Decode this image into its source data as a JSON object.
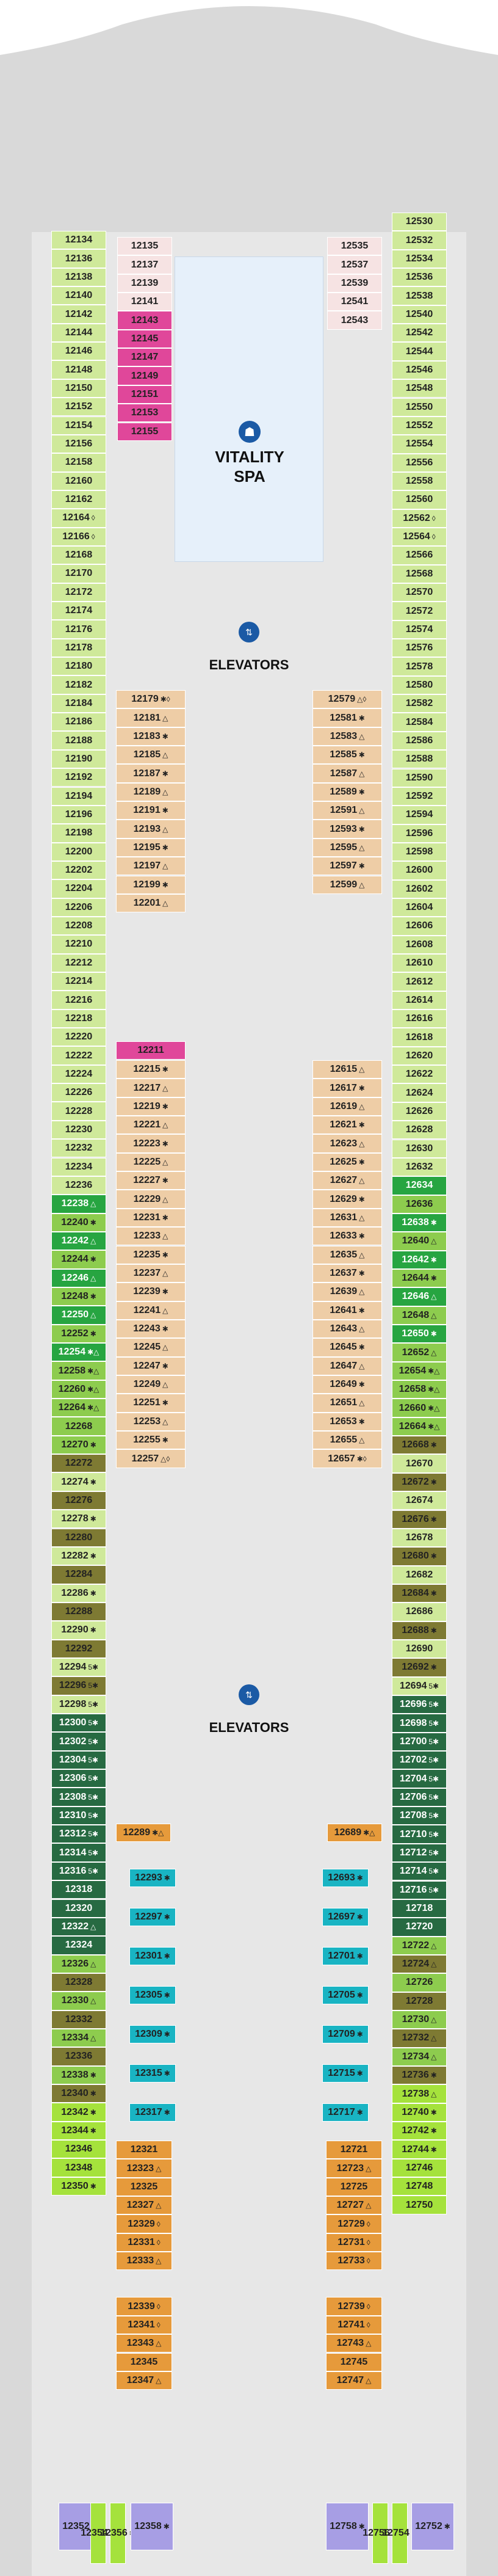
{
  "venues": {
    "spa": {
      "line1": "VITALITY",
      "line2": "SPA",
      "icon": "spa-person-icon"
    },
    "elevators_fwd": {
      "label": "ELEVATORS",
      "icon": "elevator-icon"
    },
    "elevators_aft": {
      "label": "ELEVATORS",
      "icon": "elevator-icon"
    },
    "elevator_door_letter": "E"
  },
  "colors": {
    "interior": "#eecda6",
    "balcony_light": "#cfe99a",
    "balcony_green": "#a4d86e",
    "spa_pink": "#e0479a",
    "outside_view": "#8dcc4e",
    "panoramic": "#27a541",
    "suite_dark": "#276a42",
    "family_olive": "#7e7a33",
    "teal_virtual": "#19b4c3",
    "orange_cabin": "#e69a3b",
    "lime": "#a5e23c",
    "lavender": "#a79ee4",
    "light_pink": "#f6e3e3",
    "gray_hull": "#d9d9d9",
    "corridor": "#e7e7e7",
    "spa_blue": "#e6f0fa"
  },
  "legend_symbols": {
    "accessible": "♿",
    "connecting": "◊",
    "sofa_bed": "✱",
    "two_pull": "△"
  },
  "cabins": {
    "left_outer": [
      {
        "n": "12134",
        "s": ""
      },
      {
        "n": "12136",
        "s": ""
      },
      {
        "n": "12138",
        "s": ""
      },
      {
        "n": "12140",
        "s": ""
      },
      {
        "n": "12142",
        "s": ""
      },
      {
        "n": "12144",
        "s": ""
      },
      {
        "n": "12146",
        "s": ""
      },
      {
        "n": "12148",
        "s": ""
      },
      {
        "n": "12150",
        "s": ""
      },
      {
        "n": "12152",
        "s": ""
      },
      {
        "n": "12154",
        "s": ""
      },
      {
        "n": "12156",
        "s": ""
      },
      {
        "n": "12158",
        "s": ""
      },
      {
        "n": "12160",
        "s": ""
      },
      {
        "n": "12162",
        "s": ""
      },
      {
        "n": "12164",
        "s": "◊"
      },
      {
        "n": "12166",
        "s": "◊"
      },
      {
        "n": "12168",
        "s": ""
      },
      {
        "n": "12170",
        "s": ""
      },
      {
        "n": "12172",
        "s": ""
      },
      {
        "n": "12174",
        "s": ""
      },
      {
        "n": "12176",
        "s": ""
      },
      {
        "n": "12178",
        "s": ""
      },
      {
        "n": "12180",
        "s": ""
      },
      {
        "n": "12182",
        "s": ""
      },
      {
        "n": "12184",
        "s": ""
      },
      {
        "n": "12186",
        "s": ""
      },
      {
        "n": "12188",
        "s": ""
      },
      {
        "n": "12190",
        "s": ""
      },
      {
        "n": "12192",
        "s": ""
      },
      {
        "n": "12194",
        "s": ""
      },
      {
        "n": "12196",
        "s": ""
      },
      {
        "n": "12198",
        "s": ""
      },
      {
        "n": "12200",
        "s": ""
      },
      {
        "n": "12202",
        "s": ""
      },
      {
        "n": "12204",
        "s": ""
      },
      {
        "n": "12206",
        "s": ""
      },
      {
        "n": "12208",
        "s": ""
      },
      {
        "n": "12210",
        "s": ""
      },
      {
        "n": "12212",
        "s": ""
      },
      {
        "n": "12214",
        "s": ""
      },
      {
        "n": "12216",
        "s": ""
      },
      {
        "n": "12218",
        "s": ""
      },
      {
        "n": "12220",
        "s": ""
      },
      {
        "n": "12222",
        "s": ""
      },
      {
        "n": "12224",
        "s": ""
      },
      {
        "n": "12226",
        "s": ""
      },
      {
        "n": "12228",
        "s": ""
      },
      {
        "n": "12230",
        "s": ""
      },
      {
        "n": "12232",
        "s": ""
      },
      {
        "n": "12234",
        "s": ""
      },
      {
        "n": "12236",
        "s": ""
      },
      {
        "n": "12238",
        "s": "△"
      },
      {
        "n": "12240",
        "s": "✱"
      },
      {
        "n": "12242",
        "s": "△"
      },
      {
        "n": "12244",
        "s": "✱"
      },
      {
        "n": "12246",
        "s": "△"
      },
      {
        "n": "12248",
        "s": "✱"
      },
      {
        "n": "12250",
        "s": "△"
      },
      {
        "n": "12252",
        "s": "✱"
      },
      {
        "n": "12254",
        "s": "✱△"
      },
      {
        "n": "12258",
        "s": "✱△"
      },
      {
        "n": "12260",
        "s": "✱△"
      },
      {
        "n": "12264",
        "s": "✱△"
      },
      {
        "n": "12268",
        "s": ""
      },
      {
        "n": "12270",
        "s": "✱"
      },
      {
        "n": "12272",
        "s": ""
      },
      {
        "n": "12274",
        "s": "✱"
      },
      {
        "n": "12276",
        "s": ""
      },
      {
        "n": "12278",
        "s": "✱"
      },
      {
        "n": "12280",
        "s": ""
      },
      {
        "n": "12282",
        "s": "✱"
      },
      {
        "n": "12284",
        "s": ""
      },
      {
        "n": "12286",
        "s": "✱"
      },
      {
        "n": "12288",
        "s": ""
      },
      {
        "n": "12290",
        "s": "✱"
      },
      {
        "n": "12292",
        "s": ""
      },
      {
        "n": "12294",
        "s": "5✱"
      },
      {
        "n": "12296",
        "s": "5✱"
      },
      {
        "n": "12298",
        "s": "5✱"
      },
      {
        "n": "12300",
        "s": "5✱"
      },
      {
        "n": "12302",
        "s": "5✱"
      },
      {
        "n": "12304",
        "s": "5✱"
      },
      {
        "n": "12306",
        "s": "5✱"
      },
      {
        "n": "12308",
        "s": "5✱"
      },
      {
        "n": "12310",
        "s": "5✱"
      },
      {
        "n": "12312",
        "s": "5✱"
      },
      {
        "n": "12314",
        "s": "5✱"
      },
      {
        "n": "12316",
        "s": "5✱"
      },
      {
        "n": "12318",
        "s": ""
      },
      {
        "n": "12320",
        "s": ""
      },
      {
        "n": "12322",
        "s": "△"
      },
      {
        "n": "12324",
        "s": ""
      },
      {
        "n": "12326",
        "s": "△"
      },
      {
        "n": "12328",
        "s": ""
      },
      {
        "n": "12330",
        "s": "△"
      },
      {
        "n": "12332",
        "s": ""
      },
      {
        "n": "12334",
        "s": "△"
      },
      {
        "n": "12336",
        "s": ""
      },
      {
        "n": "12338",
        "s": "✱"
      },
      {
        "n": "12340",
        "s": "✱"
      },
      {
        "n": "12342",
        "s": "✱"
      },
      {
        "n": "12344",
        "s": "✱"
      },
      {
        "n": "12346",
        "s": ""
      },
      {
        "n": "12348",
        "s": ""
      },
      {
        "n": "12350",
        "s": "✱"
      }
    ],
    "right_outer": [
      {
        "n": "12530",
        "s": ""
      },
      {
        "n": "12532",
        "s": ""
      },
      {
        "n": "12534",
        "s": ""
      },
      {
        "n": "12536",
        "s": ""
      },
      {
        "n": "12538",
        "s": ""
      },
      {
        "n": "12540",
        "s": ""
      },
      {
        "n": "12542",
        "s": ""
      },
      {
        "n": "12544",
        "s": ""
      },
      {
        "n": "12546",
        "s": ""
      },
      {
        "n": "12548",
        "s": ""
      },
      {
        "n": "12550",
        "s": ""
      },
      {
        "n": "12552",
        "s": ""
      },
      {
        "n": "12554",
        "s": ""
      },
      {
        "n": "12556",
        "s": ""
      },
      {
        "n": "12558",
        "s": ""
      },
      {
        "n": "12560",
        "s": ""
      },
      {
        "n": "12562",
        "s": "◊"
      },
      {
        "n": "12564",
        "s": "◊"
      },
      {
        "n": "12566",
        "s": ""
      },
      {
        "n": "12568",
        "s": ""
      },
      {
        "n": "12570",
        "s": ""
      },
      {
        "n": "12572",
        "s": ""
      },
      {
        "n": "12574",
        "s": ""
      },
      {
        "n": "12576",
        "s": ""
      },
      {
        "n": "12578",
        "s": ""
      },
      {
        "n": "12580",
        "s": ""
      },
      {
        "n": "12582",
        "s": ""
      },
      {
        "n": "12584",
        "s": ""
      },
      {
        "n": "12586",
        "s": ""
      },
      {
        "n": "12588",
        "s": ""
      },
      {
        "n": "12590",
        "s": ""
      },
      {
        "n": "12592",
        "s": ""
      },
      {
        "n": "12594",
        "s": ""
      },
      {
        "n": "12596",
        "s": ""
      },
      {
        "n": "12598",
        "s": ""
      },
      {
        "n": "12600",
        "s": ""
      },
      {
        "n": "12602",
        "s": ""
      },
      {
        "n": "12604",
        "s": ""
      },
      {
        "n": "12606",
        "s": ""
      },
      {
        "n": "12608",
        "s": ""
      },
      {
        "n": "12610",
        "s": ""
      },
      {
        "n": "12612",
        "s": ""
      },
      {
        "n": "12614",
        "s": ""
      },
      {
        "n": "12616",
        "s": ""
      },
      {
        "n": "12618",
        "s": ""
      },
      {
        "n": "12620",
        "s": ""
      },
      {
        "n": "12622",
        "s": ""
      },
      {
        "n": "12624",
        "s": ""
      },
      {
        "n": "12626",
        "s": ""
      },
      {
        "n": "12628",
        "s": ""
      },
      {
        "n": "12630",
        "s": ""
      },
      {
        "n": "12632",
        "s": ""
      },
      {
        "n": "12634",
        "s": ""
      },
      {
        "n": "12636",
        "s": ""
      },
      {
        "n": "12638",
        "s": "✱"
      },
      {
        "n": "12640",
        "s": "△"
      },
      {
        "n": "12642",
        "s": "✱"
      },
      {
        "n": "12644",
        "s": "✱"
      },
      {
        "n": "12646",
        "s": "△"
      },
      {
        "n": "12648",
        "s": "△"
      },
      {
        "n": "12650",
        "s": "✱"
      },
      {
        "n": "12652",
        "s": "△"
      },
      {
        "n": "12654",
        "s": "✱△"
      },
      {
        "n": "12658",
        "s": "✱△"
      },
      {
        "n": "12660",
        "s": "✱△"
      },
      {
        "n": "12664",
        "s": "✱△"
      },
      {
        "n": "12668",
        "s": "✱"
      },
      {
        "n": "12670",
        "s": ""
      },
      {
        "n": "12672",
        "s": "✱"
      },
      {
        "n": "12674",
        "s": ""
      },
      {
        "n": "12676",
        "s": "✱"
      },
      {
        "n": "12678",
        "s": ""
      },
      {
        "n": "12680",
        "s": "✱"
      },
      {
        "n": "12682",
        "s": ""
      },
      {
        "n": "12684",
        "s": "✱"
      },
      {
        "n": "12686",
        "s": ""
      },
      {
        "n": "12688",
        "s": "✱"
      },
      {
        "n": "12690",
        "s": ""
      },
      {
        "n": "12692",
        "s": "✱"
      },
      {
        "n": "12694",
        "s": "5✱"
      },
      {
        "n": "12696",
        "s": "5✱"
      },
      {
        "n": "12698",
        "s": "5✱"
      },
      {
        "n": "12700",
        "s": "5✱"
      },
      {
        "n": "12702",
        "s": "5✱"
      },
      {
        "n": "12704",
        "s": "5✱"
      },
      {
        "n": "12706",
        "s": "5✱"
      },
      {
        "n": "12708",
        "s": "5✱"
      },
      {
        "n": "12710",
        "s": "5✱"
      },
      {
        "n": "12712",
        "s": "5✱"
      },
      {
        "n": "12714",
        "s": "5✱"
      },
      {
        "n": "12716",
        "s": "5✱"
      },
      {
        "n": "12718",
        "s": ""
      },
      {
        "n": "12720",
        "s": ""
      },
      {
        "n": "12722",
        "s": "△"
      },
      {
        "n": "12724",
        "s": "△"
      },
      {
        "n": "12726",
        "s": ""
      },
      {
        "n": "12728",
        "s": ""
      },
      {
        "n": "12730",
        "s": "△"
      },
      {
        "n": "12732",
        "s": "△"
      },
      {
        "n": "12734",
        "s": "△"
      },
      {
        "n": "12736",
        "s": "✱"
      },
      {
        "n": "12738",
        "s": "△"
      },
      {
        "n": "12740",
        "s": "✱"
      },
      {
        "n": "12742",
        "s": "✱"
      },
      {
        "n": "12744",
        "s": "✱"
      },
      {
        "n": "12746",
        "s": ""
      },
      {
        "n": "12748",
        "s": ""
      },
      {
        "n": "12750",
        "s": ""
      }
    ],
    "left_spa_rows": [
      "12135",
      "12137",
      "12139",
      "12141",
      "12143",
      "12145",
      "12147",
      "12149",
      "12151",
      "12153",
      "12155"
    ],
    "right_spa_rows": [
      "12535",
      "12537",
      "12539",
      "12541",
      "12543"
    ],
    "left_interior_fwd": [
      {
        "n": "12179",
        "s": "✱◊"
      },
      {
        "n": "12181",
        "s": "△"
      },
      {
        "n": "12183",
        "s": "✱"
      },
      {
        "n": "12185",
        "s": "△"
      },
      {
        "n": "12187",
        "s": "✱"
      },
      {
        "n": "12189",
        "s": "△"
      },
      {
        "n": "12191",
        "s": "✱"
      },
      {
        "n": "12193",
        "s": "△"
      },
      {
        "n": "12195",
        "s": "✱"
      },
      {
        "n": "12197",
        "s": "△"
      },
      {
        "n": "12199",
        "s": "✱"
      },
      {
        "n": "12201",
        "s": "△"
      }
    ],
    "right_interior_fwd": [
      {
        "n": "12579",
        "s": "△◊"
      },
      {
        "n": "12581",
        "s": "✱"
      },
      {
        "n": "12583",
        "s": "△"
      },
      {
        "n": "12585",
        "s": "✱"
      },
      {
        "n": "12587",
        "s": "△"
      },
      {
        "n": "12589",
        "s": "✱"
      },
      {
        "n": "12591",
        "s": "△"
      },
      {
        "n": "12593",
        "s": "✱"
      },
      {
        "n": "12595",
        "s": "△"
      },
      {
        "n": "12597",
        "s": "✱"
      },
      {
        "n": "12599",
        "s": "△"
      }
    ],
    "left_interior_mid": [
      {
        "n": "12211",
        "s": ""
      },
      {
        "n": "12215",
        "s": "✱"
      },
      {
        "n": "12217",
        "s": "△"
      },
      {
        "n": "12219",
        "s": "✱"
      },
      {
        "n": "12221",
        "s": "△"
      },
      {
        "n": "12223",
        "s": "✱"
      },
      {
        "n": "12225",
        "s": "△"
      },
      {
        "n": "12227",
        "s": "✱"
      },
      {
        "n": "12229",
        "s": "△"
      },
      {
        "n": "12231",
        "s": "✱"
      },
      {
        "n": "12233",
        "s": "△"
      },
      {
        "n": "12235",
        "s": "✱"
      },
      {
        "n": "12237",
        "s": "△"
      },
      {
        "n": "12239",
        "s": "✱"
      },
      {
        "n": "12241",
        "s": "△"
      },
      {
        "n": "12243",
        "s": "✱"
      },
      {
        "n": "12245",
        "s": "△"
      },
      {
        "n": "12247",
        "s": "✱"
      },
      {
        "n": "12249",
        "s": "△"
      },
      {
        "n": "12251",
        "s": "✱"
      },
      {
        "n": "12253",
        "s": "△"
      },
      {
        "n": "12255",
        "s": "✱"
      },
      {
        "n": "12257",
        "s": "△◊"
      }
    ],
    "right_interior_mid": [
      {
        "n": "12615",
        "s": "△"
      },
      {
        "n": "12617",
        "s": "✱"
      },
      {
        "n": "12619",
        "s": "△"
      },
      {
        "n": "12621",
        "s": "✱"
      },
      {
        "n": "12623",
        "s": "△"
      },
      {
        "n": "12625",
        "s": "✱"
      },
      {
        "n": "12627",
        "s": "△"
      },
      {
        "n": "12629",
        "s": "✱"
      },
      {
        "n": "12631",
        "s": "△"
      },
      {
        "n": "12633",
        "s": "✱"
      },
      {
        "n": "12635",
        "s": "△"
      },
      {
        "n": "12637",
        "s": "✱"
      },
      {
        "n": "12639",
        "s": "△"
      },
      {
        "n": "12641",
        "s": "✱"
      },
      {
        "n": "12643",
        "s": "△"
      },
      {
        "n": "12645",
        "s": "✱"
      },
      {
        "n": "12647",
        "s": "△"
      },
      {
        "n": "12649",
        "s": "✱"
      },
      {
        "n": "12651",
        "s": "△"
      },
      {
        "n": "12653",
        "s": "✱"
      },
      {
        "n": "12655",
        "s": "△"
      },
      {
        "n": "12657",
        "s": "✱◊"
      }
    ],
    "orange_singles": {
      "left": {
        "n": "12289",
        "s": "✱△"
      },
      "right": {
        "n": "12689",
        "s": "✱△"
      }
    },
    "left_virtual": [
      {
        "n": "12293",
        "s": "✱"
      },
      {
        "n": "12297",
        "s": "✱"
      },
      {
        "n": "12301",
        "s": "✱"
      },
      {
        "n": "12305",
        "s": "✱"
      },
      {
        "n": "12309",
        "s": "✱"
      },
      {
        "n": "12315",
        "s": "✱"
      },
      {
        "n": "12317",
        "s": "✱"
      }
    ],
    "right_virtual": [
      {
        "n": "12693",
        "s": "✱"
      },
      {
        "n": "12697",
        "s": "✱"
      },
      {
        "n": "12701",
        "s": "✱"
      },
      {
        "n": "12705",
        "s": "✱"
      },
      {
        "n": "12709",
        "s": "✱"
      },
      {
        "n": "12715",
        "s": "✱"
      },
      {
        "n": "12717",
        "s": "✱"
      }
    ],
    "left_aft_inner": [
      {
        "n": "12321",
        "s": ""
      },
      {
        "n": "12323",
        "s": "△"
      },
      {
        "n": "12325",
        "s": ""
      },
      {
        "n": "12327",
        "s": "△"
      },
      {
        "n": "12329",
        "s": "◊"
      },
      {
        "n": "12331",
        "s": "◊"
      },
      {
        "n": "12333",
        "s": "△"
      },
      {
        "n": "12339",
        "s": "◊"
      },
      {
        "n": "12341",
        "s": "◊"
      },
      {
        "n": "12343",
        "s": "△"
      },
      {
        "n": "12345",
        "s": ""
      },
      {
        "n": "12347",
        "s": "△"
      }
    ],
    "right_aft_inner": [
      {
        "n": "12721",
        "s": ""
      },
      {
        "n": "12723",
        "s": "△"
      },
      {
        "n": "12725",
        "s": ""
      },
      {
        "n": "12727",
        "s": "△"
      },
      {
        "n": "12729",
        "s": "◊"
      },
      {
        "n": "12731",
        "s": "◊"
      },
      {
        "n": "12733",
        "s": "◊"
      },
      {
        "n": "12739",
        "s": "◊"
      },
      {
        "n": "12741",
        "s": "◊"
      },
      {
        "n": "12743",
        "s": "△"
      },
      {
        "n": "12745",
        "s": ""
      },
      {
        "n": "12747",
        "s": "△"
      }
    ],
    "stern": [
      {
        "n": "12352",
        "s": "✱"
      },
      {
        "n": "12354",
        "s": "✱"
      },
      {
        "n": "12356",
        "s": "✱"
      },
      {
        "n": "12358",
        "s": "✱"
      },
      {
        "n": "12758",
        "s": "✱"
      },
      {
        "n": "12756",
        "s": "✱"
      },
      {
        "n": "12754",
        "s": "✱"
      },
      {
        "n": "12752",
        "s": "✱"
      }
    ]
  }
}
